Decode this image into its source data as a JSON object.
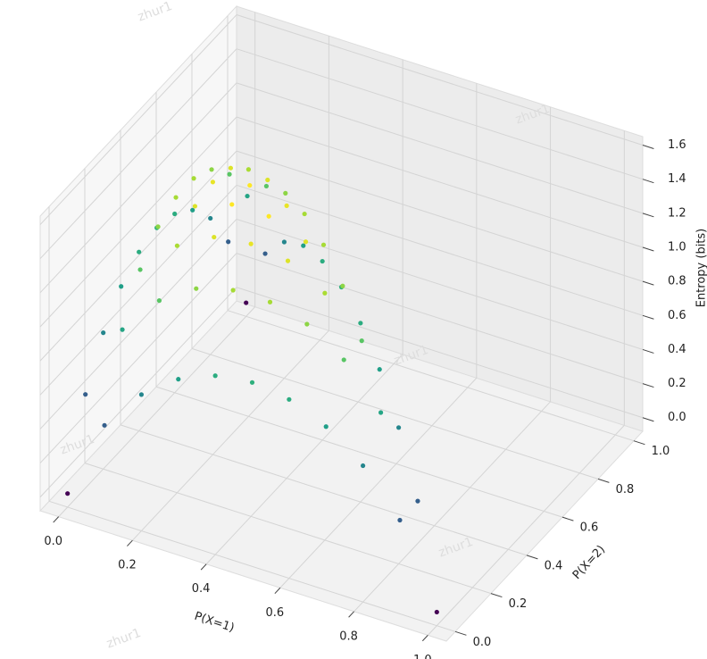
{
  "chart_data": {
    "type": "scatter3d",
    "xlabel": "P(X=1)",
    "ylabel": "P(X=2)",
    "zlabel": "Entropy (bits)",
    "colormap": "viridis",
    "grid": true,
    "watermark": "zhur1",
    "xlim": [
      -0.05,
      1.05
    ],
    "ylim": [
      -0.05,
      1.05
    ],
    "zlim": [
      -0.08,
      1.65
    ],
    "xticks": [
      {
        "value": 0,
        "label": "0.0"
      },
      0.2,
      0.4,
      0.6,
      0.8,
      {
        "value": 1,
        "label": "1.0"
      }
    ],
    "yticks": [
      {
        "value": 0,
        "label": "0.0"
      },
      0.2,
      0.4,
      0.6,
      0.8,
      {
        "value": 1,
        "label": "1.0"
      }
    ],
    "zticks": [
      {
        "value": 0,
        "label": "0.0"
      },
      0.2,
      0.4,
      0.6,
      0.8,
      {
        "value": 1,
        "label": "1.0"
      },
      1.2,
      1.4,
      1.6
    ],
    "x": [
      0,
      0,
      0,
      0,
      0,
      0,
      0,
      0,
      0,
      0,
      0,
      0.1,
      0.1,
      0.1,
      0.1,
      0.1,
      0.1,
      0.1,
      0.1,
      0.1,
      0.1,
      0.2,
      0.2,
      0.2,
      0.2,
      0.2,
      0.2,
      0.2,
      0.2,
      0.2,
      0.3,
      0.3,
      0.3,
      0.3,
      0.3,
      0.3,
      0.3,
      0.3,
      0.4,
      0.4,
      0.4,
      0.4,
      0.4,
      0.4,
      0.4,
      0.5,
      0.5,
      0.5,
      0.5,
      0.5,
      0.5,
      0.6,
      0.6,
      0.6,
      0.6,
      0.6,
      0.7,
      0.7,
      0.7,
      0.7,
      0.8,
      0.8,
      0.8,
      0.9,
      0.9,
      1
    ],
    "y": [
      0,
      0.1,
      0.2,
      0.3,
      0.4,
      0.5,
      0.6,
      0.7,
      0.8,
      0.9,
      1,
      0,
      0.1,
      0.2,
      0.3,
      0.4,
      0.5,
      0.6,
      0.7,
      0.8,
      0.9,
      0,
      0.1,
      0.2,
      0.3,
      0.4,
      0.5,
      0.6,
      0.7,
      0.8,
      0,
      0.1,
      0.2,
      0.3,
      0.4,
      0.5,
      0.6,
      0.7,
      0,
      0.1,
      0.2,
      0.3,
      0.4,
      0.5,
      0.6,
      0,
      0.1,
      0.2,
      0.3,
      0.4,
      0.5,
      0,
      0.1,
      0.2,
      0.3,
      0.4,
      0,
      0.1,
      0.2,
      0.3,
      0,
      0.1,
      0.2,
      0,
      0.1,
      0
    ],
    "z": [
      0,
      0.47,
      0.72,
      0.88,
      0.97,
      1.0,
      0.97,
      0.88,
      0.72,
      0.47,
      0,
      0.47,
      0.92,
      1.16,
      1.3,
      1.36,
      1.36,
      1.3,
      1.16,
      0.92,
      0.47,
      0.72,
      1.16,
      1.37,
      1.49,
      1.52,
      1.49,
      1.37,
      1.16,
      0.72,
      0.88,
      1.3,
      1.49,
      1.57,
      1.57,
      1.49,
      1.3,
      0.88,
      0.97,
      1.36,
      1.52,
      1.57,
      1.52,
      1.36,
      0.97,
      1.0,
      1.36,
      1.49,
      1.49,
      1.36,
      1.0,
      0.97,
      1.3,
      1.37,
      1.3,
      0.97,
      0.88,
      1.16,
      1.16,
      0.88,
      0.72,
      0.92,
      0.72,
      0.47,
      0.47,
      0
    ]
  }
}
